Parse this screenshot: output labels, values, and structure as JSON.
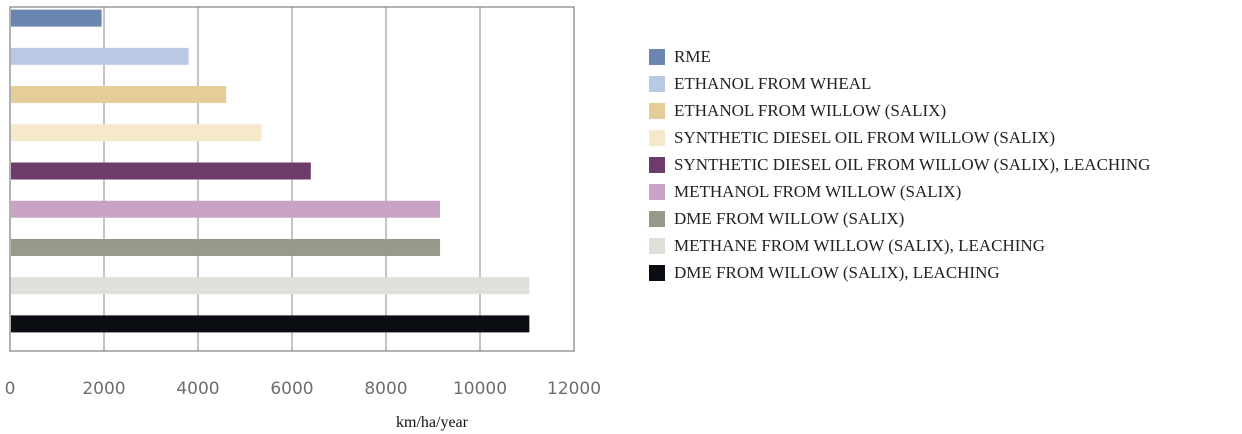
{
  "chart_data": {
    "type": "bar",
    "orientation": "horizontal",
    "title": "",
    "xlabel": "km/ha/year",
    "ylabel": "",
    "xlim": [
      0,
      12000
    ],
    "x_ticks": [
      "0",
      "2000",
      "4000",
      "6000",
      "8000",
      "10000",
      "12000"
    ],
    "grid": "vertical",
    "legend_position": "right",
    "categories": [
      "RME",
      "ETHANOL FROM WHEAL",
      "ETHANOL FROM WILLOW (SALIX)",
      "SYNTHETIC DIESEL OIL FROM WILLOW (SALIX)",
      "SYNTHETIC DIESEL OIL FROM WILLOW (SALIX), LEACHING",
      "METHANOL FROM WILLOW (SALIX)",
      "DME FROM WILLOW (SALIX)",
      "METHANE FROM WILLOW (SALIX), LEACHING",
      "DME FROM WILLOW (SALIX), LEACHING"
    ],
    "values": [
      1950,
      3800,
      4600,
      5350,
      6400,
      9150,
      9150,
      11050,
      11050
    ],
    "colors": [
      "#6b86b0",
      "#b9c9e4",
      "#e4cd98",
      "#f6e9cb",
      "#6e3c6a",
      "#c9a3c4",
      "#979a89",
      "#e0e0da",
      "#0a0d12"
    ]
  }
}
